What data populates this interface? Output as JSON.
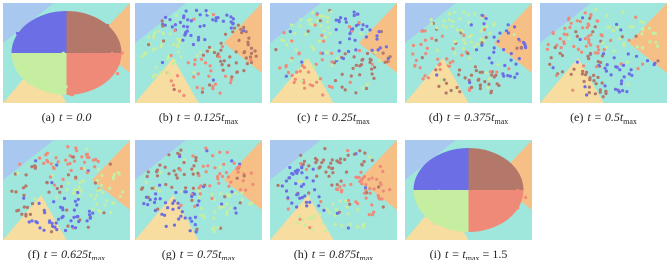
{
  "figure": {
    "panels": [
      {
        "label": "(a)",
        "text": "t = 0.0"
      },
      {
        "label": "(b)",
        "text": "t = 0.125t",
        "sub": "max"
      },
      {
        "label": "(c)",
        "text": "t = 0.25t",
        "sub": "max"
      },
      {
        "label": "(d)",
        "text": "t = 0.375t",
        "sub": "max"
      },
      {
        "label": "(e)",
        "text": "t = 0.5t",
        "sub": "max"
      },
      {
        "label": "(f)",
        "text": "t = 0.625t",
        "sub": "max"
      },
      {
        "label": "(g)",
        "text": "t = 0.75t",
        "sub": "max"
      },
      {
        "label": "(h)",
        "text": "t = 0.875t",
        "sub": "max"
      },
      {
        "label": "(i)",
        "text": "t = t",
        "sub": "max",
        "after": " = 1.5"
      }
    ]
  }
}
